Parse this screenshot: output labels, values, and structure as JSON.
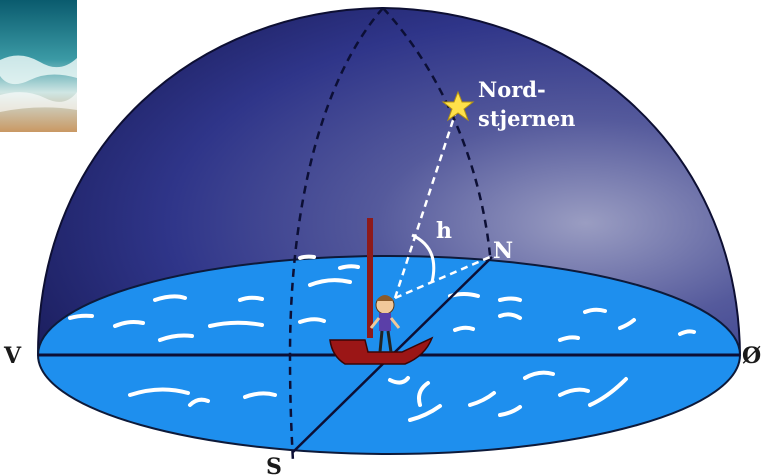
{
  "diagram": {
    "star_label_line1": "Nord-",
    "star_label_line2": "stjernen",
    "angle_label": "h",
    "north_label": "N",
    "south_label": "S",
    "west_label": "V",
    "east_label": "Ø"
  },
  "colors": {
    "sky_dark": "#1f2266",
    "sky_mid": "#2c3285",
    "sky_light": "#8a8fb8",
    "water": "#1e8fee",
    "water_light": "#3aa6ff",
    "boat": "#9b1616",
    "star": "#ffe14a",
    "sea_photo_top": "#0f6f80",
    "sea_photo_sand": "#c99863"
  }
}
